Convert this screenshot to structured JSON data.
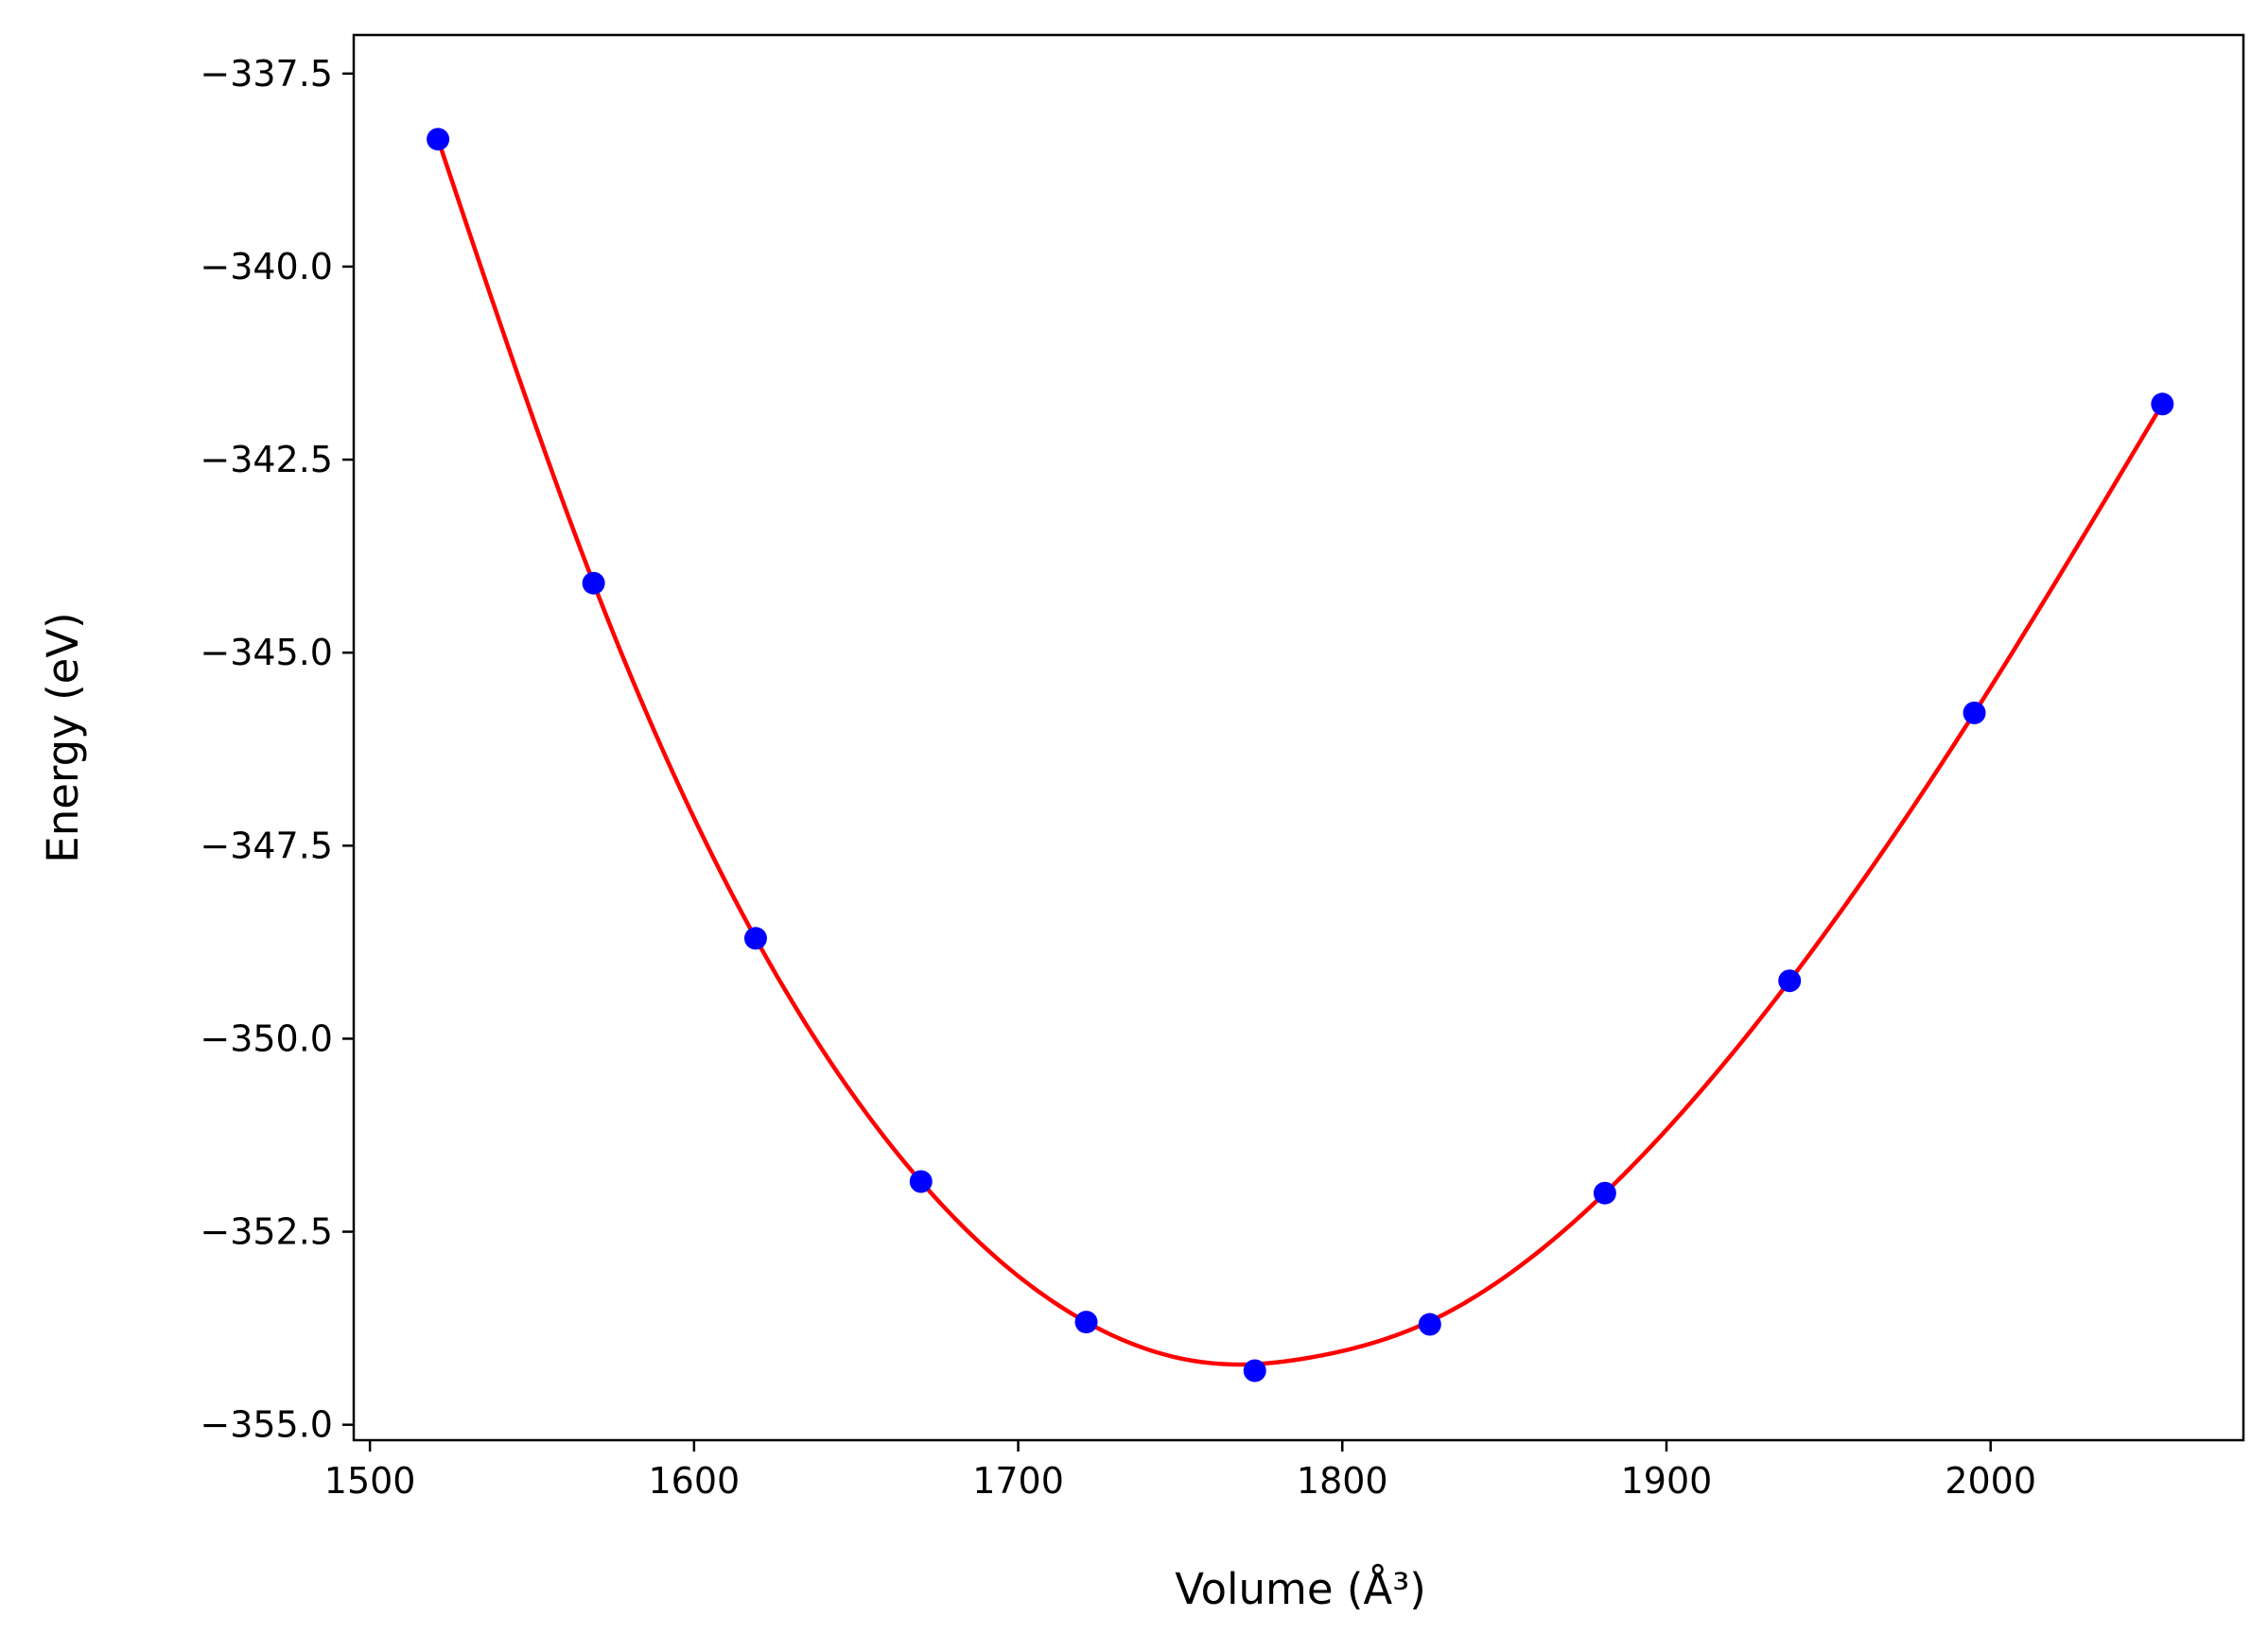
{
  "chart_data": {
    "type": "scatter",
    "title": "",
    "xlabel": "Volume (Å³)",
    "ylabel": "Energy (eV)",
    "xlim": [
      1495,
      2078
    ],
    "ylim": [
      -355.2,
      -337.0
    ],
    "grid": false,
    "legend": "none",
    "x_ticks": [
      1500,
      1600,
      1700,
      1800,
      1900,
      2000
    ],
    "x_tick_labels": [
      "1500",
      "1600",
      "1700",
      "1800",
      "1900",
      "2000"
    ],
    "y_ticks": [
      -337.5,
      -340.0,
      -342.5,
      -345.0,
      -347.5,
      -350.0,
      -352.5,
      -355.0
    ],
    "y_tick_labels": [
      "−337.5",
      "−340.0",
      "−342.5",
      "−345.0",
      "−347.5",
      "−350.0",
      "−352.5",
      "−355.0"
    ],
    "series": [
      {
        "kind": "points",
        "color": "#0000ff",
        "x": [
          1521,
          1569,
          1619,
          1670,
          1721,
          1773,
          1827,
          1881,
          1938,
          1995,
          2053
        ],
        "y": [
          -338.35,
          -344.1,
          -348.7,
          -351.85,
          -353.67,
          -354.3,
          -353.7,
          -352.0,
          -349.25,
          -345.78,
          -341.78
        ]
      },
      {
        "kind": "fit-curve",
        "color": "#ff0000",
        "x": [
          1521,
          1569,
          1619,
          1670,
          1721,
          1750,
          1768,
          1790,
          1827,
          1881,
          1938,
          1995,
          2053
        ],
        "y": [
          -338.35,
          -344.1,
          -348.7,
          -351.85,
          -353.67,
          -354.14,
          -354.22,
          -354.13,
          -353.66,
          -352.0,
          -349.25,
          -345.78,
          -341.78
        ]
      }
    ]
  }
}
